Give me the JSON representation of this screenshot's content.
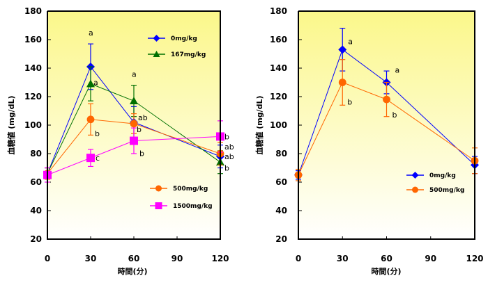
{
  "chart_data": [
    {
      "type": "line",
      "title": "",
      "xlabel": "時間(分)",
      "ylabel": "血糖値 (mg/dL)",
      "xlim": [
        0,
        120
      ],
      "ylim": [
        20,
        180
      ],
      "x_ticks": [
        0,
        30,
        60,
        90,
        120
      ],
      "y_ticks": [
        20,
        40,
        60,
        80,
        100,
        120,
        140,
        160,
        180
      ],
      "grid": false,
      "background": "yellow-gradient",
      "legend": [
        "top-right",
        "bottom-right"
      ],
      "x": [
        0,
        30,
        60,
        120
      ],
      "series": [
        {
          "name": "0mg/kg",
          "marker": "diamond",
          "color": "#0000ff",
          "values": [
            66,
            141,
            102,
            78
          ],
          "error": [
            4,
            16,
            11,
            8
          ],
          "labels": [
            "",
            "a",
            "ab",
            "ab"
          ],
          "legend_group": 0
        },
        {
          "name": "167mg/kg",
          "marker": "triangle",
          "color": "#007000",
          "values": [
            66,
            129,
            117,
            74
          ],
          "error": [
            4,
            12,
            11,
            8
          ],
          "labels": [
            "",
            "a",
            "a",
            "b"
          ],
          "legend_group": 0
        },
        {
          "name": "500mg/kg",
          "marker": "circle",
          "color": "#ff6600",
          "values": [
            66,
            104,
            101,
            80
          ],
          "error": [
            4,
            11,
            7,
            8
          ],
          "labels": [
            "",
            "b",
            "b",
            "ab"
          ],
          "legend_group": 1
        },
        {
          "name": "1500mg/kg",
          "marker": "square",
          "color": "#ff00ff",
          "values": [
            65,
            77,
            89,
            92
          ],
          "error": [
            5,
            6,
            9,
            11
          ],
          "labels": [
            "",
            "c",
            "b",
            "b"
          ],
          "legend_group": 1
        }
      ]
    },
    {
      "type": "line",
      "title": "",
      "xlabel": "時間(分)",
      "ylabel": "血糖値 (mg/dL)",
      "xlim": [
        0,
        120
      ],
      "ylim": [
        20,
        180
      ],
      "x_ticks": [
        0,
        30,
        60,
        90,
        120
      ],
      "y_ticks": [
        20,
        40,
        60,
        80,
        100,
        120,
        140,
        160,
        180
      ],
      "grid": false,
      "background": "yellow-gradient",
      "legend": [
        "bottom-right"
      ],
      "x": [
        0,
        30,
        60,
        120
      ],
      "series": [
        {
          "name": "0mg/kg",
          "marker": "diamond",
          "color": "#0000ff",
          "values": [
            65,
            153,
            130,
            72
          ],
          "error": [
            3,
            15,
            8,
            6
          ],
          "labels": [
            "",
            "a",
            "a",
            ""
          ],
          "legend_group": 0
        },
        {
          "name": "500mg/kg",
          "marker": "circle",
          "color": "#ff6600",
          "values": [
            65,
            130,
            118,
            75
          ],
          "error": [
            4,
            16,
            12,
            9
          ],
          "labels": [
            "",
            "b",
            "b",
            ""
          ],
          "legend_group": 0
        }
      ]
    }
  ]
}
